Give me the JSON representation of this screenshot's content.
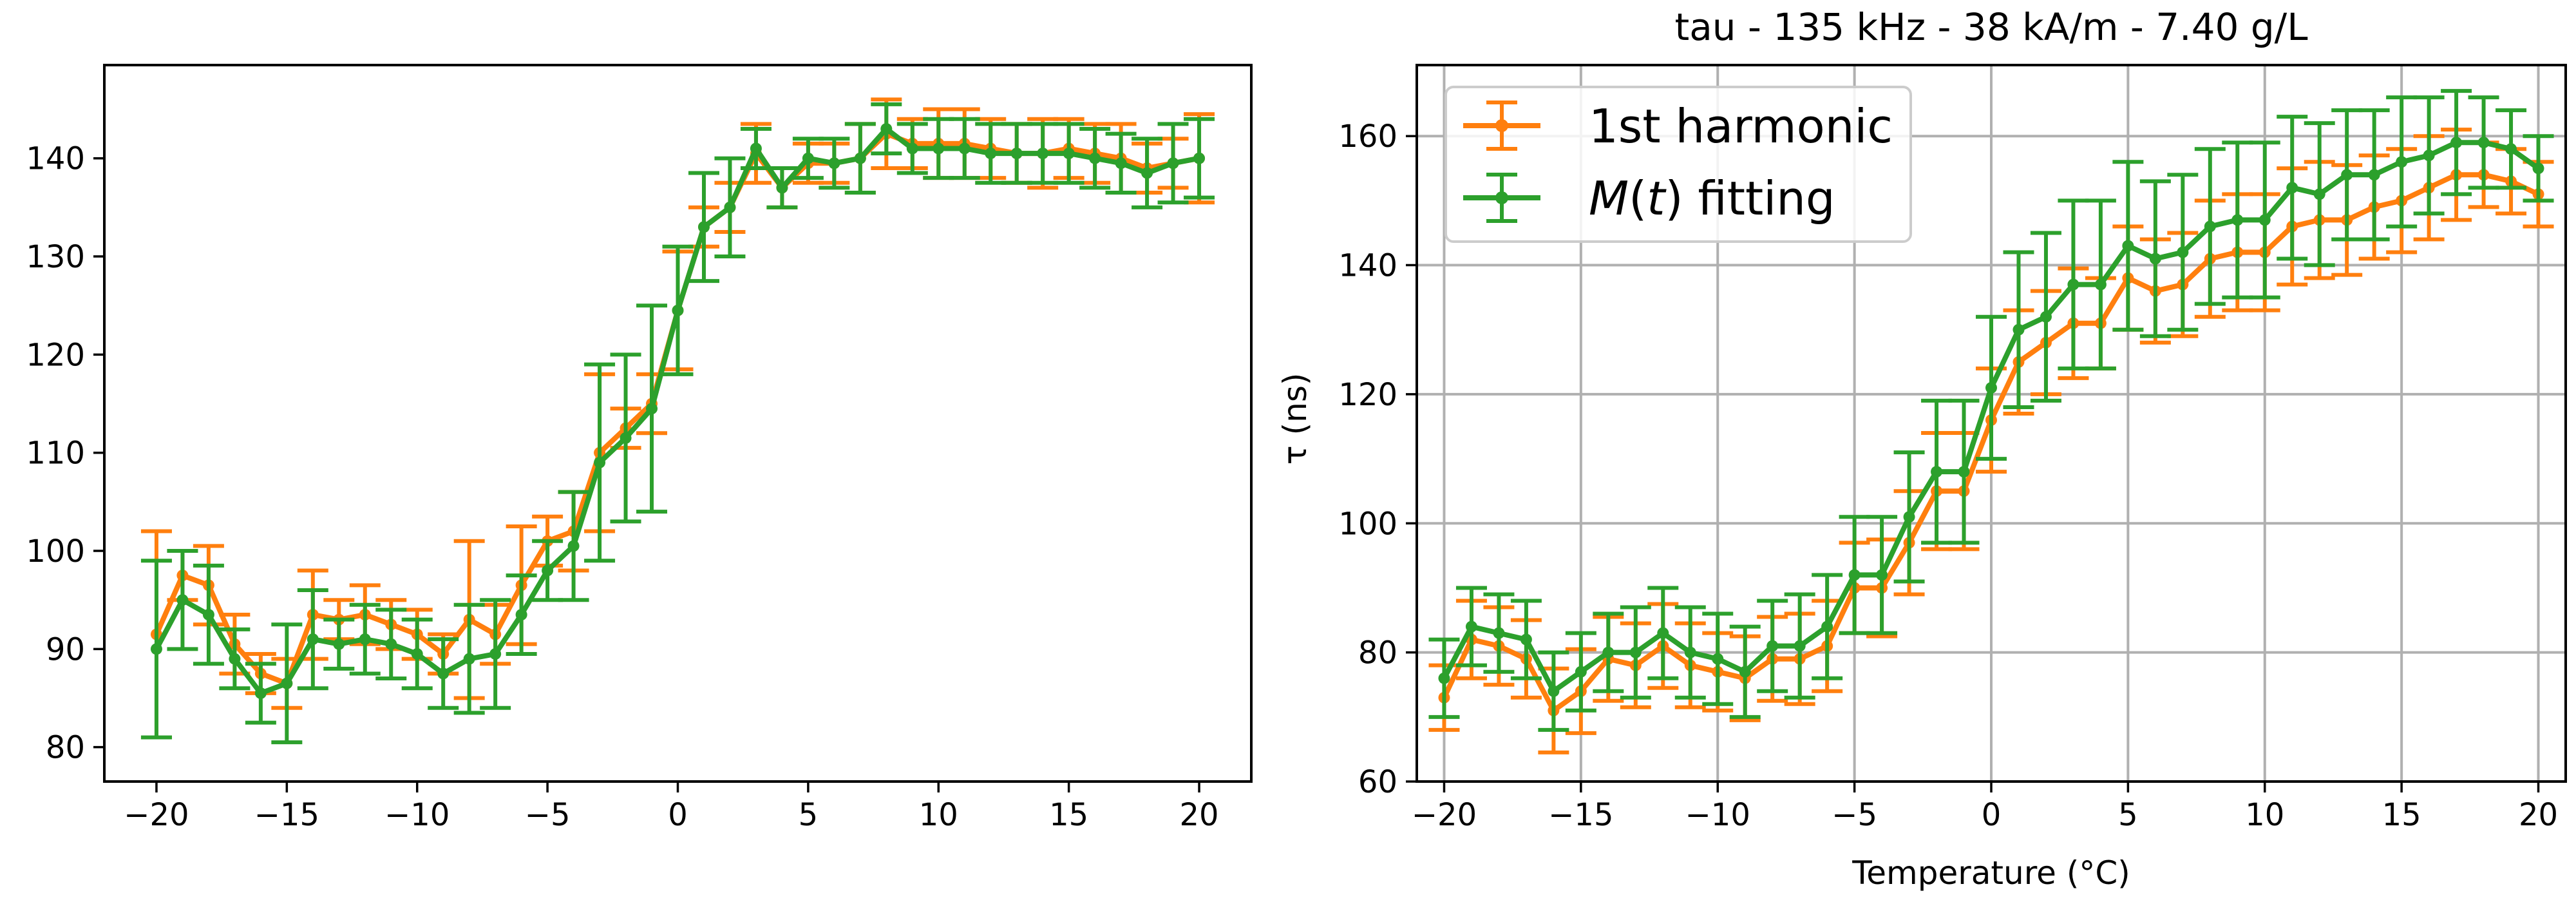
{
  "colors": {
    "harmonic": "#ff7f0e",
    "fitting": "#2ca02c",
    "grid": "#b0b0b0",
    "axis": "#000000"
  },
  "chart_data": [
    {
      "type": "line",
      "title": "",
      "xlabel": "",
      "ylabel": "",
      "xlim": [
        -22,
        22
      ],
      "ylim": [
        76.5,
        149.5
      ],
      "xticks": [
        -20,
        -15,
        -10,
        -5,
        0,
        5,
        10,
        15,
        20
      ],
      "yticks": [
        80,
        90,
        100,
        110,
        120,
        130,
        140
      ],
      "xtick_labels": [
        "−20",
        "−15",
        "−10",
        "−5",
        "0",
        "5",
        "10",
        "15",
        "20"
      ],
      "ytick_labels": [
        "80",
        "90",
        "100",
        "110",
        "120",
        "130",
        "140"
      ],
      "grid": false,
      "legend": "none",
      "error_bars": true,
      "x": [
        -20,
        -19,
        -18,
        -17,
        -16,
        -15,
        -14,
        -13,
        -12,
        -11,
        -10,
        -9,
        -8,
        -7,
        -6,
        -5,
        -4,
        -3,
        -2,
        -1,
        0,
        1,
        2,
        3,
        4,
        5,
        6,
        7,
        8,
        9,
        10,
        11,
        12,
        13,
        14,
        15,
        16,
        17,
        18,
        19,
        20
      ],
      "series": [
        {
          "name": "1st harmonic",
          "color": "#ff7f0e",
          "values": [
            91.5,
            97.5,
            96.5,
            90.5,
            87.5,
            86.5,
            93.5,
            93.0,
            93.5,
            92.5,
            91.5,
            89.5,
            93.0,
            91.5,
            96.5,
            101.0,
            102.0,
            110.0,
            112.5,
            115.0,
            124.5,
            133.0,
            135.0,
            140.5,
            137.0,
            139.5,
            139.5,
            140.0,
            142.5,
            141.5,
            141.5,
            141.5,
            141.0,
            140.5,
            140.5,
            141.0,
            140.5,
            140.0,
            139.0,
            139.5,
            140.0
          ],
          "errors": [
            10.5,
            2.5,
            4.0,
            3.0,
            2.0,
            2.5,
            4.5,
            2.0,
            3.0,
            2.5,
            2.5,
            2.0,
            8.0,
            3.0,
            6.0,
            2.5,
            4.0,
            8.0,
            2.0,
            3.0,
            6.0,
            2.0,
            2.5,
            3.0,
            2.0,
            2.0,
            2.0,
            3.5,
            3.5,
            2.5,
            3.5,
            3.5,
            3.0,
            3.0,
            3.5,
            3.0,
            3.0,
            3.5,
            2.5,
            2.5,
            4.5
          ]
        },
        {
          "name": "M(t) fitting",
          "color": "#2ca02c",
          "values": [
            90.0,
            95.0,
            93.5,
            89.0,
            85.5,
            86.5,
            91.0,
            90.5,
            91.0,
            90.5,
            89.5,
            87.5,
            89.0,
            89.5,
            93.5,
            98.0,
            100.5,
            109.0,
            111.5,
            114.5,
            124.5,
            133.0,
            135.0,
            141.0,
            137.0,
            140.0,
            139.5,
            140.0,
            143.0,
            141.0,
            141.0,
            141.0,
            140.5,
            140.5,
            140.5,
            140.5,
            140.0,
            139.5,
            138.5,
            139.5,
            140.0
          ],
          "errors": [
            9.0,
            5.0,
            5.0,
            3.0,
            3.0,
            6.0,
            5.0,
            2.5,
            3.5,
            3.5,
            3.5,
            3.5,
            5.5,
            5.5,
            4.0,
            3.0,
            5.5,
            10.0,
            8.5,
            10.5,
            6.5,
            5.5,
            5.0,
            2.0,
            2.0,
            2.0,
            2.5,
            3.5,
            2.5,
            2.5,
            3.0,
            3.0,
            3.0,
            3.0,
            3.0,
            3.0,
            3.0,
            3.0,
            3.5,
            4.0,
            4.0
          ]
        }
      ]
    },
    {
      "type": "line",
      "title": "tau - 135 kHz - 38 kA/m - 7.40 g/L",
      "xlabel": "Temperature (°C)",
      "ylabel": "τ (ns)",
      "xlim": [
        -21,
        21
      ],
      "ylim": [
        60,
        171
      ],
      "xticks": [
        -20,
        -15,
        -10,
        -5,
        0,
        5,
        10,
        15,
        20
      ],
      "yticks": [
        60,
        80,
        100,
        120,
        140,
        160
      ],
      "xtick_labels": [
        "−20",
        "−15",
        "−10",
        "−5",
        "0",
        "5",
        "10",
        "15",
        "20"
      ],
      "ytick_labels": [
        "60",
        "80",
        "100",
        "120",
        "140",
        "160"
      ],
      "grid": true,
      "legend": "top-left",
      "error_bars": true,
      "x": [
        -20,
        -19,
        -18,
        -17,
        -16,
        -15,
        -14,
        -13,
        -12,
        -11,
        -10,
        -9,
        -8,
        -7,
        -6,
        -5,
        -4,
        -3,
        -2,
        -1,
        0,
        1,
        2,
        3,
        4,
        5,
        6,
        7,
        8,
        9,
        10,
        11,
        12,
        13,
        14,
        15,
        16,
        17,
        18,
        19,
        20
      ],
      "series": [
        {
          "name": "1st harmonic",
          "color": "#ff7f0e",
          "values": [
            73.0,
            82.0,
            81.0,
            79.0,
            71.0,
            74.0,
            79.0,
            78.0,
            81.0,
            78.0,
            77.0,
            76.0,
            79.0,
            79.0,
            81.0,
            90.0,
            90.0,
            97.0,
            105.0,
            105.0,
            116.0,
            125.0,
            128.0,
            131.0,
            131.0,
            138.0,
            136.0,
            137.0,
            141.0,
            142.0,
            142.0,
            146.0,
            147.0,
            147.0,
            149.0,
            150.0,
            152.0,
            154.0,
            154.0,
            153.0,
            151.0
          ],
          "errors": [
            5.0,
            6.0,
            6.0,
            6.0,
            6.5,
            6.5,
            6.5,
            6.5,
            6.5,
            6.5,
            6.0,
            6.5,
            6.5,
            7.0,
            7.0,
            7.0,
            7.5,
            8.0,
            9.0,
            9.0,
            8.0,
            8.0,
            8.0,
            8.5,
            7.0,
            8.0,
            8.0,
            8.0,
            9.0,
            9.0,
            9.0,
            9.0,
            9.0,
            8.5,
            8.0,
            8.0,
            8.0,
            7.0,
            5.0,
            5.0,
            5.0
          ]
        },
        {
          "name": "M(t) fitting",
          "color": "#2ca02c",
          "values": [
            76.0,
            84.0,
            83.0,
            82.0,
            74.0,
            77.0,
            80.0,
            80.0,
            83.0,
            80.0,
            79.0,
            77.0,
            81.0,
            81.0,
            84.0,
            92.0,
            92.0,
            101.0,
            108.0,
            108.0,
            121.0,
            130.0,
            132.0,
            137.0,
            137.0,
            143.0,
            141.0,
            142.0,
            146.0,
            147.0,
            147.0,
            152.0,
            151.0,
            154.0,
            154.0,
            156.0,
            157.0,
            159.0,
            159.0,
            158.0,
            155.0
          ],
          "errors": [
            6.0,
            6.0,
            6.0,
            6.0,
            6.0,
            6.0,
            6.0,
            7.0,
            7.0,
            7.0,
            7.0,
            7.0,
            7.0,
            8.0,
            8.0,
            9.0,
            9.0,
            10.0,
            11.0,
            11.0,
            11.0,
            12.0,
            13.0,
            13.0,
            13.0,
            13.0,
            12.0,
            12.0,
            12.0,
            12.0,
            12.0,
            11.0,
            11.0,
            10.0,
            10.0,
            10.0,
            9.0,
            8.0,
            7.0,
            6.0,
            5.0
          ]
        }
      ]
    }
  ],
  "legend": {
    "items": [
      {
        "label_parts": [
          {
            "text": "1st harmonic",
            "italic": false
          }
        ],
        "color": "#ff7f0e"
      },
      {
        "label_parts": [
          {
            "text": "M",
            "italic": true
          },
          {
            "text": "(",
            "italic": false
          },
          {
            "text": "t",
            "italic": true
          },
          {
            "text": ") fitting",
            "italic": false
          }
        ],
        "color": "#2ca02c"
      }
    ]
  }
}
